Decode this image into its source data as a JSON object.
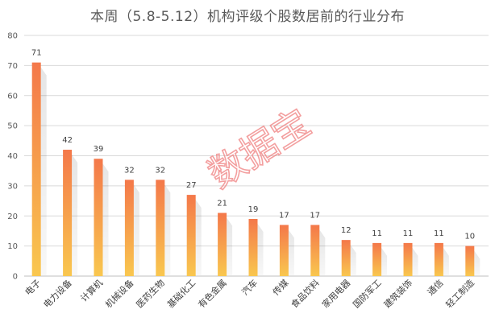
{
  "chart_data": {
    "type": "bar",
    "title": "本周（5.8-5.12）机构评级个股数居前的行业分布",
    "xlabel": "",
    "ylabel": "",
    "ylim": [
      0,
      80
    ],
    "yticks": [
      0,
      10,
      20,
      30,
      40,
      50,
      60,
      70,
      80
    ],
    "grid": true,
    "legend": "none",
    "categories": [
      "电子",
      "电力设备",
      "计算机",
      "机械设备",
      "医药生物",
      "基础化工",
      "有色金属",
      "汽车",
      "传媒",
      "食品饮料",
      "家用电器",
      "国防军工",
      "建筑装饰",
      "通信",
      "轻工制造"
    ],
    "values": [
      71,
      42,
      39,
      32,
      32,
      27,
      21,
      19,
      17,
      17,
      12,
      11,
      11,
      11,
      10
    ],
    "colors": {
      "bar_top": "#f4784a",
      "bar_bottom": "#f9c74f",
      "grid": "#d9d9d9",
      "axis": "#bfbfbf",
      "watermark": "#f08080"
    }
  },
  "watermark": "数据宝"
}
